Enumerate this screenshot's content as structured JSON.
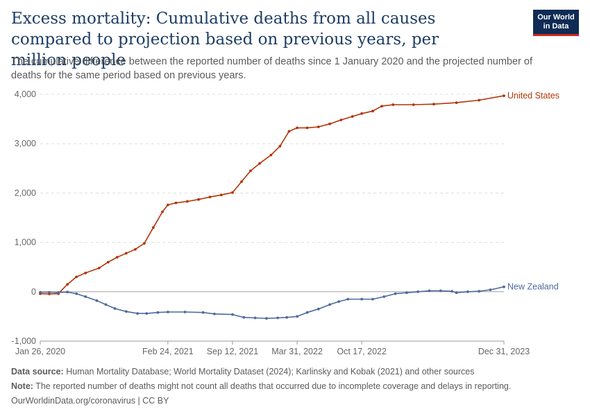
{
  "header": {
    "title": "Excess mortality: Cumulative deaths from all causes compared to projection based on previous years, per million people",
    "subtitle": "The cumulative difference between the reported number of deaths since 1 January 2020 and the projected number of deaths for the same period based on previous years.",
    "logo_line1": "Our World",
    "logo_line2": "in Data"
  },
  "footer": {
    "source_label": "Data source:",
    "source_text": "Human Mortality Database; World Mortality Dataset (2024); Karlinsky and Kobak (2021) and other sources",
    "note_label": "Note:",
    "note_text": "The reported number of deaths might not count all deaths that occurred due to incomplete coverage and delays in reporting.",
    "credit": "OurWorldinData.org/coronavirus | CC BY"
  },
  "colors": {
    "united_states": "#b13507",
    "new_zealand": "#4c6a9c",
    "grid": "#dddddd",
    "zero_line": "#a1a1a1",
    "tick_text": "#666666"
  },
  "chart_data": {
    "type": "line",
    "x_axis": {
      "type": "date",
      "range": [
        "2020-01-26",
        "2023-12-31"
      ],
      "tick_labels": [
        "Jan 26, 2020",
        "Feb 24, 2021",
        "Sep 12, 2021",
        "Mar 31, 2022",
        "Oct 17, 2022",
        "Dec 31, 2023"
      ],
      "tick_dates": [
        "2020-01-26",
        "2021-02-24",
        "2021-09-12",
        "2022-03-31",
        "2022-10-17",
        "2023-12-31"
      ]
    },
    "y_axis": {
      "range": [
        -1000,
        4000
      ],
      "ticks": [
        -1000,
        0,
        1000,
        2000,
        3000,
        4000
      ],
      "tick_labels": [
        "-1,000",
        "0",
        "1,000",
        "2,000",
        "3,000",
        "4,000"
      ]
    },
    "grid": true,
    "legend": "inline labels at right end of lines",
    "series": [
      {
        "name": "United States",
        "color": "#b13507",
        "points": [
          [
            "2020-01-26",
            -40
          ],
          [
            "2020-02-23",
            -45
          ],
          [
            "2020-03-22",
            -40
          ],
          [
            "2020-04-19",
            150
          ],
          [
            "2020-05-17",
            300
          ],
          [
            "2020-06-14",
            380
          ],
          [
            "2020-07-26",
            480
          ],
          [
            "2020-08-23",
            600
          ],
          [
            "2020-09-20",
            700
          ],
          [
            "2020-10-18",
            780
          ],
          [
            "2020-11-15",
            860
          ],
          [
            "2020-12-13",
            980
          ],
          [
            "2021-01-10",
            1300
          ],
          [
            "2021-02-07",
            1620
          ],
          [
            "2021-02-24",
            1760
          ],
          [
            "2021-03-21",
            1800
          ],
          [
            "2021-04-25",
            1830
          ],
          [
            "2021-05-30",
            1870
          ],
          [
            "2021-07-04",
            1920
          ],
          [
            "2021-08-08",
            1960
          ],
          [
            "2021-09-12",
            2010
          ],
          [
            "2021-10-10",
            2230
          ],
          [
            "2021-11-07",
            2450
          ],
          [
            "2021-12-05",
            2600
          ],
          [
            "2022-01-09",
            2770
          ],
          [
            "2022-02-06",
            2950
          ],
          [
            "2022-03-06",
            3250
          ],
          [
            "2022-03-31",
            3320
          ],
          [
            "2022-05-01",
            3320
          ],
          [
            "2022-06-05",
            3340
          ],
          [
            "2022-07-10",
            3400
          ],
          [
            "2022-08-14",
            3480
          ],
          [
            "2022-09-18",
            3550
          ],
          [
            "2022-10-17",
            3610
          ],
          [
            "2022-11-20",
            3660
          ],
          [
            "2022-12-18",
            3760
          ],
          [
            "2023-01-22",
            3790
          ],
          [
            "2023-03-26",
            3790
          ],
          [
            "2023-05-28",
            3800
          ],
          [
            "2023-08-06",
            3830
          ],
          [
            "2023-10-15",
            3880
          ],
          [
            "2023-12-31",
            3970
          ]
        ]
      },
      {
        "name": "New Zealand",
        "color": "#4c6a9c",
        "points": [
          [
            "2020-01-26",
            -10
          ],
          [
            "2020-02-23",
            -10
          ],
          [
            "2020-03-22",
            -15
          ],
          [
            "2020-04-19",
            -5
          ],
          [
            "2020-05-17",
            -40
          ],
          [
            "2020-06-14",
            -100
          ],
          [
            "2020-07-19",
            -180
          ],
          [
            "2020-08-16",
            -260
          ],
          [
            "2020-09-13",
            -340
          ],
          [
            "2020-10-18",
            -400
          ],
          [
            "2020-11-22",
            -440
          ],
          [
            "2020-12-20",
            -440
          ],
          [
            "2021-01-24",
            -420
          ],
          [
            "2021-02-24",
            -410
          ],
          [
            "2021-04-18",
            -410
          ],
          [
            "2021-06-13",
            -420
          ],
          [
            "2021-07-18",
            -450
          ],
          [
            "2021-09-12",
            -460
          ],
          [
            "2021-10-17",
            -520
          ],
          [
            "2021-11-21",
            -530
          ],
          [
            "2021-12-26",
            -540
          ],
          [
            "2022-01-30",
            -530
          ],
          [
            "2022-02-27",
            -520
          ],
          [
            "2022-03-31",
            -500
          ],
          [
            "2022-05-01",
            -420
          ],
          [
            "2022-06-05",
            -350
          ],
          [
            "2022-07-10",
            -260
          ],
          [
            "2022-08-07",
            -200
          ],
          [
            "2022-09-04",
            -150
          ],
          [
            "2022-10-17",
            -150
          ],
          [
            "2022-11-20",
            -150
          ],
          [
            "2022-12-25",
            -100
          ],
          [
            "2023-01-29",
            -40
          ],
          [
            "2023-03-05",
            -20
          ],
          [
            "2023-04-09",
            0
          ],
          [
            "2023-05-14",
            20
          ],
          [
            "2023-06-18",
            20
          ],
          [
            "2023-07-23",
            10
          ],
          [
            "2023-08-06",
            -20
          ],
          [
            "2023-09-10",
            0
          ],
          [
            "2023-10-15",
            10
          ],
          [
            "2023-11-19",
            40
          ],
          [
            "2023-12-31",
            100
          ]
        ]
      }
    ]
  }
}
